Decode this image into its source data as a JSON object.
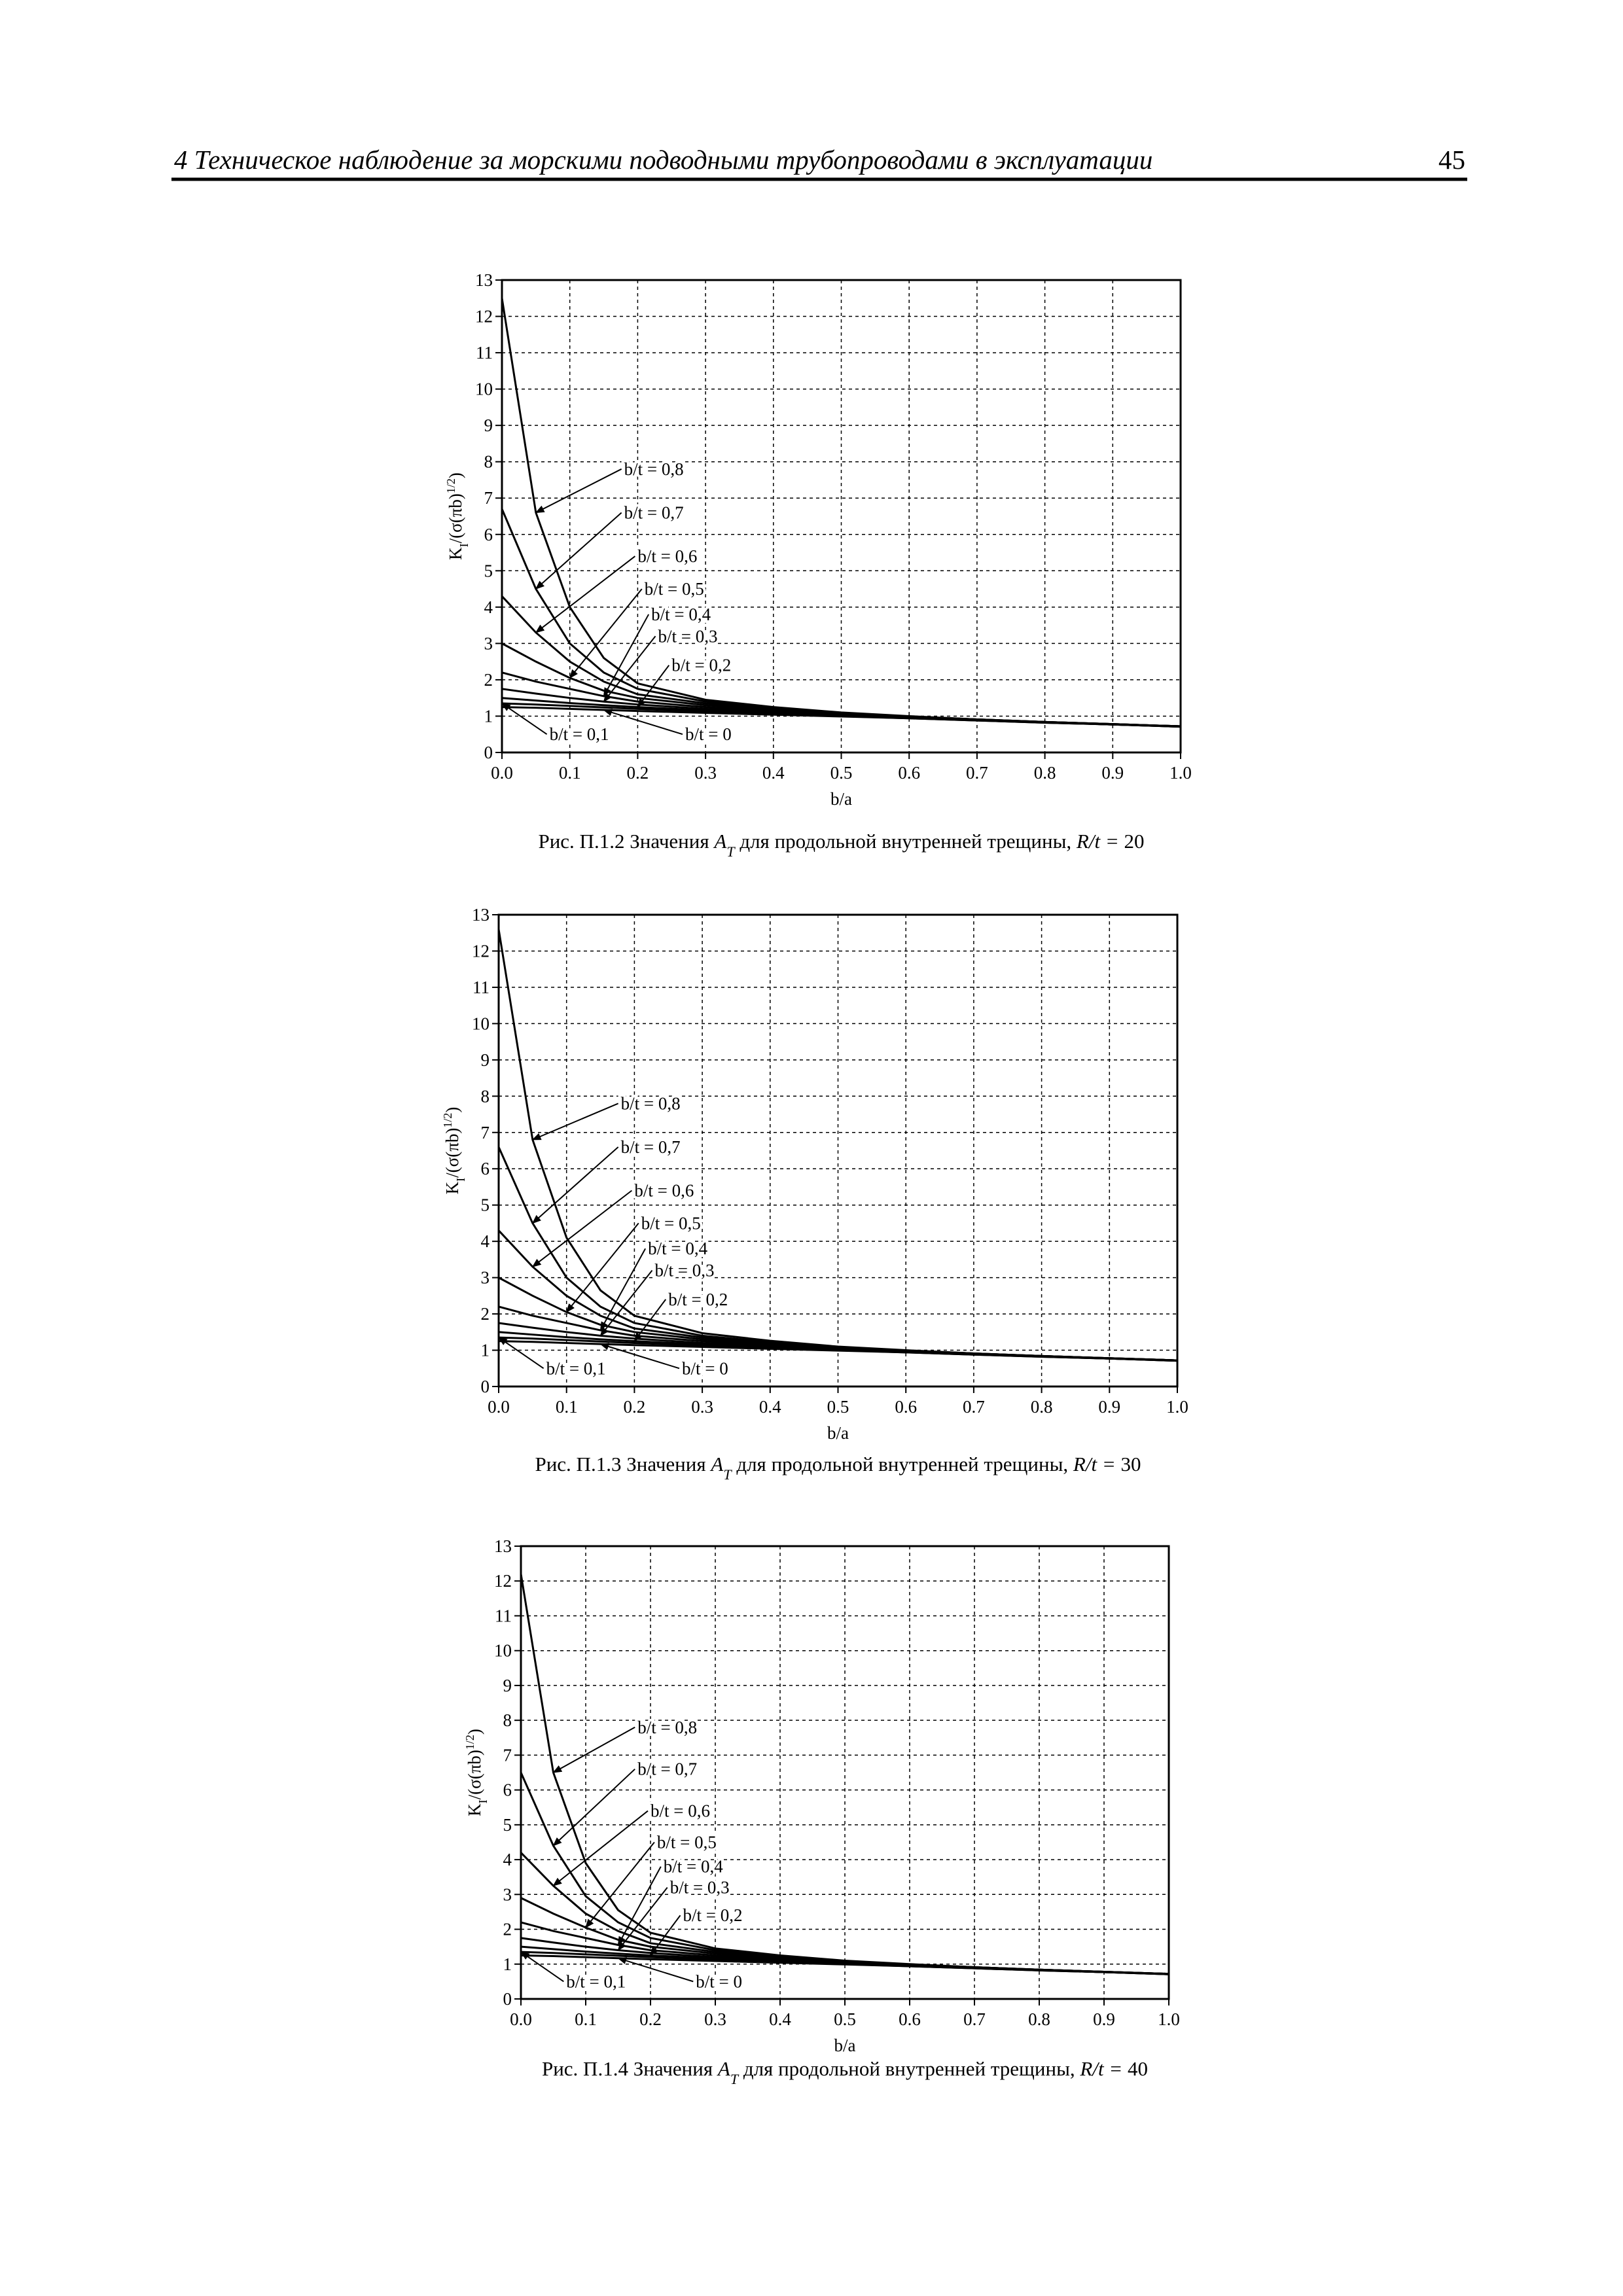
{
  "header": {
    "title": "4 Техническое наблюдение за морскими подводными трубопроводами в эксплуатации",
    "page": "45"
  },
  "chart_data": [
    {
      "type": "line",
      "color": "#000000",
      "grid": true,
      "xlabel": "b/a",
      "ylabel": [
        "K",
        "I",
        "/(σ(πb)",
        "1/2",
        ")"
      ],
      "caption": {
        "text1": "Рис. П.1.2 Значения",
        "sym": "A",
        "sub": "T",
        "text2": "для продольной внутренней трещины,",
        "ratio": "R/t =",
        "num": 20
      },
      "xlim": [
        0,
        1
      ],
      "ylim": [
        0,
        13
      ],
      "xticks": [
        {
          "value": 0,
          "label": "0.0"
        },
        {
          "value": 0.1,
          "label": "0.1"
        },
        {
          "value": 0.2,
          "label": "0.2"
        },
        {
          "value": 0.3,
          "label": "0.3"
        },
        {
          "value": 0.4,
          "label": "0.4"
        },
        {
          "value": 0.5,
          "label": "0.5"
        },
        {
          "value": 0.6,
          "label": "0.6"
        },
        {
          "value": 0.7,
          "label": "0.7"
        },
        {
          "value": 0.8,
          "label": "0.8"
        },
        {
          "value": 0.9,
          "label": "0.9"
        },
        {
          "value": 1,
          "label": "1.0"
        }
      ],
      "yticks": [
        0,
        1,
        2,
        3,
        4,
        5,
        6,
        7,
        8,
        9,
        10,
        11,
        12,
        13
      ],
      "x": [
        0,
        0.05,
        0.1,
        0.15,
        0.2,
        0.3,
        0.4,
        0.5,
        0.6,
        0.7,
        0.8,
        0.9,
        1
      ],
      "series": [
        {
          "name": "b/t = 0,8",
          "values": [
            12.5,
            6.6,
            4.0,
            2.6,
            1.9,
            1.45,
            1.25,
            1.1,
            1.0,
            0.91,
            0.84,
            0.78,
            0.72
          ]
        },
        {
          "name": "b/t = 0,7",
          "values": [
            6.7,
            4.5,
            3.0,
            2.2,
            1.75,
            1.4,
            1.22,
            1.09,
            0.99,
            0.91,
            0.84,
            0.78,
            0.72
          ]
        },
        {
          "name": "b/t = 0,6",
          "values": [
            4.3,
            3.3,
            2.5,
            1.95,
            1.6,
            1.35,
            1.2,
            1.08,
            0.99,
            0.91,
            0.84,
            0.78,
            0.72
          ]
        },
        {
          "name": "b/t = 0,5",
          "values": [
            3.0,
            2.5,
            2.05,
            1.7,
            1.5,
            1.3,
            1.17,
            1.07,
            0.98,
            0.9,
            0.84,
            0.78,
            0.72
          ]
        },
        {
          "name": "b/t = 0,4",
          "values": [
            2.2,
            1.95,
            1.75,
            1.55,
            1.4,
            1.25,
            1.14,
            1.05,
            0.97,
            0.9,
            0.83,
            0.77,
            0.72
          ]
        },
        {
          "name": "b/t = 0,3",
          "values": [
            1.75,
            1.62,
            1.5,
            1.4,
            1.32,
            1.2,
            1.11,
            1.03,
            0.96,
            0.89,
            0.83,
            0.77,
            0.72
          ]
        },
        {
          "name": "b/t = 0,2",
          "values": [
            1.5,
            1.43,
            1.36,
            1.3,
            1.25,
            1.16,
            1.08,
            1.02,
            0.95,
            0.89,
            0.83,
            0.77,
            0.71
          ]
        },
        {
          "name": "b/t = 0,1",
          "values": [
            1.35,
            1.32,
            1.28,
            1.24,
            1.2,
            1.13,
            1.06,
            1.0,
            0.94,
            0.88,
            0.82,
            0.77,
            0.71
          ]
        },
        {
          "name": "b/t = 0",
          "values": [
            1.25,
            1.23,
            1.2,
            1.17,
            1.14,
            1.09,
            1.04,
            0.99,
            0.94,
            0.88,
            0.82,
            0.77,
            0.71
          ]
        }
      ]
    },
    {
      "type": "line",
      "color": "#000000",
      "grid": true,
      "xlabel": "b/a",
      "ylabel": [
        "K",
        "I",
        "/(σ(πb)",
        "1/2",
        ")"
      ],
      "caption": {
        "text1": "Рис. П.1.3 Значения",
        "sym": "A",
        "sub": "T",
        "text2": "для продольной внутренней трещины,",
        "ratio": "R/t =",
        "num": 30
      },
      "xlim": [
        0,
        1
      ],
      "ylim": [
        0,
        13
      ],
      "xticks": [
        {
          "value": 0,
          "label": "0.0"
        },
        {
          "value": 0.1,
          "label": "0.1"
        },
        {
          "value": 0.2,
          "label": "0.2"
        },
        {
          "value": 0.3,
          "label": "0.3"
        },
        {
          "value": 0.4,
          "label": "0.4"
        },
        {
          "value": 0.5,
          "label": "0.5"
        },
        {
          "value": 0.6,
          "label": "0.6"
        },
        {
          "value": 0.7,
          "label": "0.7"
        },
        {
          "value": 0.8,
          "label": "0.8"
        },
        {
          "value": 0.9,
          "label": "0.9"
        },
        {
          "value": 1,
          "label": "1.0"
        }
      ],
      "yticks": [
        0,
        1,
        2,
        3,
        4,
        5,
        6,
        7,
        8,
        9,
        10,
        11,
        12,
        13
      ],
      "x": [
        0,
        0.05,
        0.1,
        0.15,
        0.2,
        0.3,
        0.4,
        0.5,
        0.6,
        0.7,
        0.8,
        0.9,
        1
      ],
      "series": [
        {
          "name": "b/t = 0,8",
          "values": [
            12.6,
            6.8,
            4.1,
            2.65,
            1.95,
            1.47,
            1.26,
            1.1,
            1.0,
            0.91,
            0.84,
            0.78,
            0.72
          ]
        },
        {
          "name": "b/t = 0,7",
          "values": [
            6.6,
            4.5,
            3.0,
            2.2,
            1.75,
            1.4,
            1.22,
            1.09,
            0.99,
            0.91,
            0.84,
            0.78,
            0.72
          ]
        },
        {
          "name": "b/t = 0,6",
          "values": [
            4.3,
            3.3,
            2.5,
            1.95,
            1.6,
            1.35,
            1.2,
            1.08,
            0.99,
            0.91,
            0.84,
            0.78,
            0.72
          ]
        },
        {
          "name": "b/t = 0,5",
          "values": [
            3.0,
            2.5,
            2.05,
            1.7,
            1.5,
            1.3,
            1.17,
            1.07,
            0.98,
            0.9,
            0.84,
            0.78,
            0.72
          ]
        },
        {
          "name": "b/t = 0,4",
          "values": [
            2.2,
            1.95,
            1.75,
            1.55,
            1.4,
            1.25,
            1.14,
            1.05,
            0.97,
            0.9,
            0.83,
            0.77,
            0.72
          ]
        },
        {
          "name": "b/t = 0,3",
          "values": [
            1.75,
            1.62,
            1.5,
            1.4,
            1.32,
            1.2,
            1.11,
            1.03,
            0.96,
            0.89,
            0.83,
            0.77,
            0.72
          ]
        },
        {
          "name": "b/t = 0,2",
          "values": [
            1.5,
            1.43,
            1.36,
            1.3,
            1.25,
            1.16,
            1.08,
            1.02,
            0.95,
            0.89,
            0.83,
            0.77,
            0.71
          ]
        },
        {
          "name": "b/t = 0,1",
          "values": [
            1.35,
            1.32,
            1.28,
            1.24,
            1.2,
            1.13,
            1.06,
            1.0,
            0.94,
            0.88,
            0.82,
            0.77,
            0.71
          ]
        },
        {
          "name": "b/t = 0",
          "values": [
            1.25,
            1.23,
            1.2,
            1.17,
            1.14,
            1.09,
            1.04,
            0.99,
            0.94,
            0.88,
            0.82,
            0.77,
            0.71
          ]
        }
      ]
    },
    {
      "type": "line",
      "color": "#000000",
      "grid": true,
      "xlabel": "b/a",
      "ylabel": [
        "K",
        "I",
        "/(σ(πb)",
        "1/2",
        ")"
      ],
      "caption": {
        "text1": "Рис. П.1.4 Значения",
        "sym": "A",
        "sub": "T",
        "text2": "для продольной внутренней трещины,",
        "ratio": "R/t =",
        "num": 40
      },
      "xlim": [
        0,
        1
      ],
      "ylim": [
        0,
        13
      ],
      "xticks": [
        {
          "value": 0,
          "label": "0.0"
        },
        {
          "value": 0.1,
          "label": "0.1"
        },
        {
          "value": 0.2,
          "label": "0.2"
        },
        {
          "value": 0.3,
          "label": "0.3"
        },
        {
          "value": 0.4,
          "label": "0.4"
        },
        {
          "value": 0.5,
          "label": "0.5"
        },
        {
          "value": 0.6,
          "label": "0.6"
        },
        {
          "value": 0.7,
          "label": "0.7"
        },
        {
          "value": 0.8,
          "label": "0.8"
        },
        {
          "value": 0.9,
          "label": "0.9"
        },
        {
          "value": 1,
          "label": "1.0"
        }
      ],
      "yticks": [
        0,
        1,
        2,
        3,
        4,
        5,
        6,
        7,
        8,
        9,
        10,
        11,
        12,
        13
      ],
      "x": [
        0,
        0.05,
        0.1,
        0.15,
        0.2,
        0.3,
        0.4,
        0.5,
        0.6,
        0.7,
        0.8,
        0.9,
        1
      ],
      "series": [
        {
          "name": "b/t = 0,8",
          "values": [
            12.2,
            6.5,
            3.9,
            2.55,
            1.9,
            1.45,
            1.25,
            1.1,
            1.0,
            0.91,
            0.84,
            0.78,
            0.72
          ]
        },
        {
          "name": "b/t = 0,7",
          "values": [
            6.5,
            4.4,
            2.95,
            2.2,
            1.75,
            1.4,
            1.22,
            1.09,
            0.99,
            0.91,
            0.84,
            0.78,
            0.72
          ]
        },
        {
          "name": "b/t = 0,6",
          "values": [
            4.2,
            3.25,
            2.45,
            1.95,
            1.6,
            1.35,
            1.2,
            1.08,
            0.99,
            0.91,
            0.84,
            0.78,
            0.72
          ]
        },
        {
          "name": "b/t = 0,5",
          "values": [
            2.9,
            2.45,
            2.05,
            1.7,
            1.5,
            1.3,
            1.17,
            1.07,
            0.98,
            0.9,
            0.84,
            0.78,
            0.72
          ]
        },
        {
          "name": "b/t = 0,4",
          "values": [
            2.2,
            1.95,
            1.75,
            1.55,
            1.4,
            1.25,
            1.14,
            1.05,
            0.97,
            0.9,
            0.83,
            0.77,
            0.72
          ]
        },
        {
          "name": "b/t = 0,3",
          "values": [
            1.75,
            1.62,
            1.5,
            1.4,
            1.32,
            1.2,
            1.11,
            1.03,
            0.96,
            0.89,
            0.83,
            0.77,
            0.72
          ]
        },
        {
          "name": "b/t = 0,2",
          "values": [
            1.5,
            1.43,
            1.36,
            1.3,
            1.25,
            1.16,
            1.08,
            1.02,
            0.95,
            0.89,
            0.83,
            0.77,
            0.71
          ]
        },
        {
          "name": "b/t = 0,1",
          "values": [
            1.35,
            1.32,
            1.28,
            1.24,
            1.2,
            1.13,
            1.06,
            1.0,
            0.94,
            0.88,
            0.82,
            0.77,
            0.71
          ]
        },
        {
          "name": "b/t = 0",
          "values": [
            1.25,
            1.23,
            1.2,
            1.17,
            1.14,
            1.09,
            1.04,
            0.99,
            0.94,
            0.88,
            0.82,
            0.77,
            0.71
          ]
        }
      ]
    }
  ]
}
